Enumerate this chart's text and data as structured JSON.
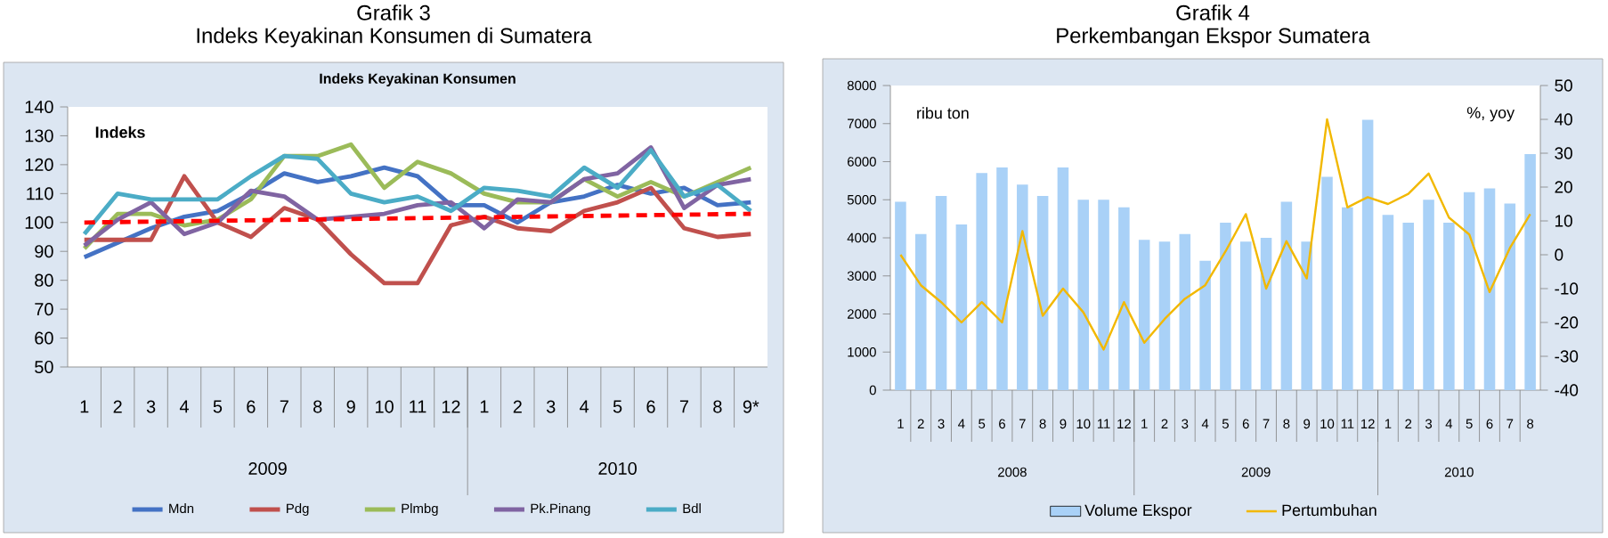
{
  "chart_data": [
    {
      "type": "line",
      "title": "Grafik 3",
      "subtitle": "Indeks Keyakinan Konsumen di Sumatera",
      "ylabel": "Indeks",
      "annotations": [
        "Indeks Keyakinan Konsumen",
        "2009",
        "2010"
      ],
      "categories": [
        "1",
        "2",
        "3",
        "4",
        "5",
        "6",
        "7",
        "8",
        "9",
        "10",
        "11",
        "12",
        "1",
        "2",
        "3",
        "4",
        "5",
        "6",
        "7",
        "8",
        "9*"
      ],
      "ylim": [
        50,
        140
      ],
      "yticks": [
        50,
        60,
        70,
        80,
        90,
        100,
        110,
        120,
        130,
        140
      ],
      "legend": "bottom",
      "series": [
        {
          "name": "Mdn",
          "color": "#4472c4",
          "values": [
            88,
            93,
            98,
            102,
            104,
            110,
            117,
            114,
            116,
            119,
            116,
            106,
            106,
            100,
            107,
            109,
            113,
            110,
            112,
            106,
            107
          ]
        },
        {
          "name": "Pdg",
          "color": "#c0504d",
          "values": [
            94,
            94,
            94,
            116,
            100,
            95,
            105,
            101,
            89,
            79,
            79,
            99,
            102,
            98,
            97,
            104,
            107,
            112,
            98,
            95,
            96
          ]
        },
        {
          "name": "Plmbg",
          "color": "#9bbb59",
          "values": [
            91,
            103,
            103,
            99,
            101,
            108,
            123,
            123,
            127,
            112,
            121,
            117,
            110,
            107,
            107,
            115,
            109,
            114,
            109,
            114,
            119
          ]
        },
        {
          "name": "Pk.Pinang",
          "color": "#8064a2",
          "values": [
            92,
            101,
            107,
            96,
            100,
            111,
            109,
            101,
            102,
            103,
            106,
            107,
            98,
            108,
            107,
            115,
            117,
            126,
            105,
            113,
            115
          ]
        },
        {
          "name": "Bdl",
          "color": "#4bacc6",
          "values": [
            96,
            110,
            108,
            108,
            108,
            116,
            123,
            122,
            110,
            107,
            109,
            104,
            112,
            111,
            109,
            119,
            112,
            125,
            109,
            113,
            104
          ]
        },
        {
          "color": "#ff0000",
          "line_style": "dashed",
          "values": [
            100,
            null,
            null,
            null,
            null,
            null,
            null,
            null,
            null,
            null,
            null,
            null,
            null,
            null,
            null,
            null,
            null,
            null,
            null,
            null,
            103
          ]
        }
      ]
    },
    {
      "type": "bar",
      "title": "Grafik 4",
      "subtitle": "Perkembangan Ekspor Sumatera",
      "ylabel": "ribu ton",
      "y2label": "%, yoy",
      "annotations": [
        "2008",
        "2009",
        "2010"
      ],
      "categories": [
        "1",
        "2",
        "3",
        "4",
        "5",
        "6",
        "7",
        "8",
        "9",
        "10",
        "11",
        "12",
        "1",
        "2",
        "3",
        "4",
        "5",
        "6",
        "7",
        "8",
        "9",
        "10",
        "11",
        "12",
        "1",
        "2",
        "3",
        "4",
        "5",
        "6",
        "7",
        "8"
      ],
      "ylim": [
        0,
        8000
      ],
      "yticks": [
        0,
        1000,
        2000,
        3000,
        4000,
        5000,
        6000,
        7000,
        8000
      ],
      "y2lim": [
        -40,
        50
      ],
      "y2ticks": [
        -40,
        -30,
        -20,
        -10,
        0,
        10,
        20,
        30,
        40,
        50
      ],
      "legend": "bottom",
      "series": [
        {
          "name": "Volume Ekspor",
          "color": "#a9d1f7",
          "values": [
            4950,
            4100,
            5100,
            4350,
            5700,
            5850,
            5400,
            5100,
            5850,
            5000,
            5000,
            4800,
            3950,
            3900,
            4100,
            3400,
            4400,
            3900,
            4000,
            4950,
            3900,
            5600,
            4800,
            7100,
            4600,
            4400,
            5000,
            4400,
            5200,
            5300,
            4900,
            6200
          ]
        },
        {
          "name": "Pertumbuhan",
          "type": "line",
          "axis": "y2",
          "color": "#f2b800",
          "values": [
            0,
            -9,
            -14,
            -20,
            -14,
            -20,
            7,
            -18,
            -10,
            -17,
            -28,
            -14,
            -26,
            -19,
            -13,
            -9,
            1,
            12,
            -10,
            4,
            -7,
            40,
            14,
            17,
            15,
            18,
            24,
            11,
            6,
            -11,
            2,
            12
          ]
        }
      ]
    }
  ]
}
